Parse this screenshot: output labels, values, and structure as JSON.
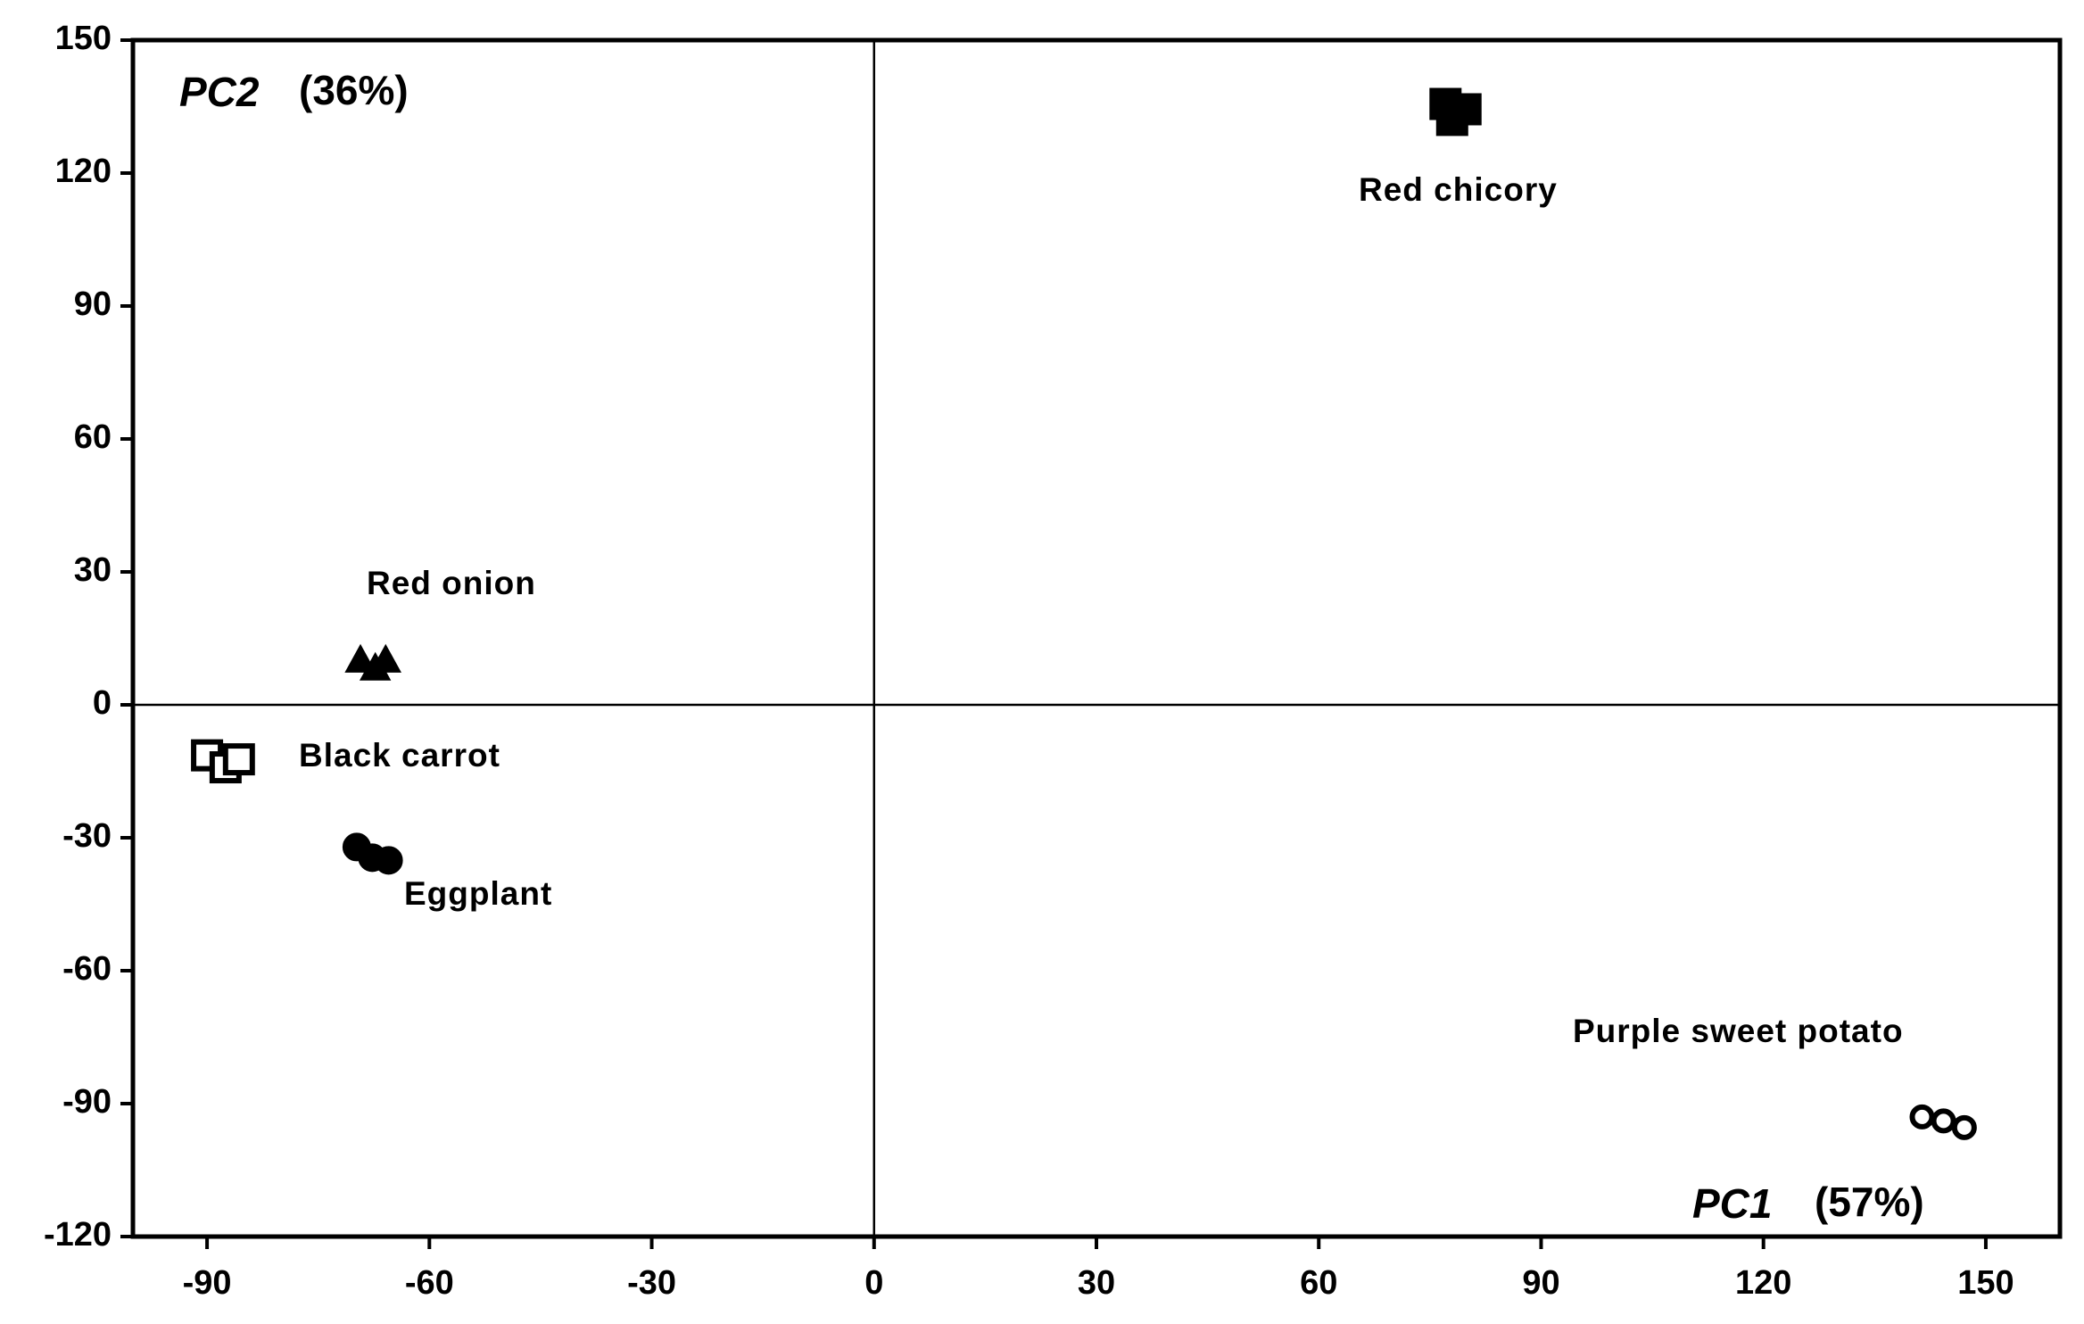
{
  "chart_data": {
    "type": "scatter",
    "x_label": {
      "name": "PC1",
      "percent": "(57%)"
    },
    "y_label": {
      "name": "PC2",
      "percent": "(36%)"
    },
    "xlim": [
      -100,
      160
    ],
    "ylim": [
      -120,
      150
    ],
    "xticks": [
      -90,
      -60,
      -30,
      0,
      30,
      60,
      90,
      120,
      150
    ],
    "yticks": [
      -120,
      -90,
      -60,
      -30,
      0,
      30,
      60,
      90,
      120,
      150
    ],
    "series": [
      {
        "name": "Red chicory",
        "marker": "square",
        "filled": true,
        "color": "#000000",
        "x": [
          77.1,
          78.0,
          79.8
        ],
        "y": [
          135.6,
          132,
          134.4
        ]
      },
      {
        "name": "Red onion",
        "marker": "triangle",
        "filled": true,
        "color": "#000000",
        "x": [
          -69.3,
          -67.3,
          -65.9
        ],
        "y": [
          9.9,
          8.1,
          9.9
        ]
      },
      {
        "name": "Black carrot",
        "marker": "square",
        "filled": false,
        "color": "#000000",
        "x": [
          -90,
          -87.5,
          -85.7
        ],
        "y": [
          -11.4,
          -14.1,
          -12.3
        ]
      },
      {
        "name": "Eggplant",
        "marker": "circle",
        "filled": true,
        "color": "#000000",
        "x": [
          -69.8,
          -67.7,
          -65.5
        ],
        "y": [
          -32.1,
          -34.5,
          -35.1
        ]
      },
      {
        "name": "Purple sweet potato",
        "marker": "circle",
        "filled": false,
        "color": "#000000",
        "x": [
          141.4,
          144.3,
          147.1
        ],
        "y": [
          -93,
          -93.9,
          -95.4
        ]
      }
    ]
  }
}
